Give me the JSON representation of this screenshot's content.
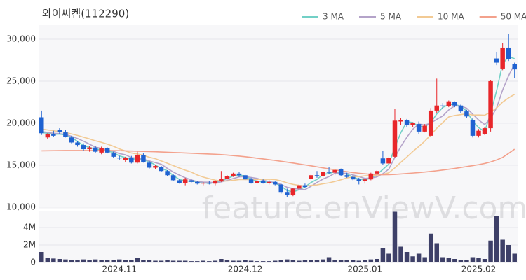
{
  "chart_data": {
    "type": "candlestick",
    "title": "와이씨켐(112290)",
    "watermark": "feature.enViewV.com",
    "categories": [
      null,
      null,
      null,
      null,
      null,
      null,
      null,
      null,
      null,
      null,
      null,
      null,
      null,
      "2024.11",
      null,
      null,
      null,
      null,
      null,
      null,
      null,
      null,
      null,
      null,
      null,
      null,
      null,
      null,
      null,
      null,
      null,
      null,
      null,
      null,
      "2024.12",
      null,
      null,
      null,
      null,
      null,
      null,
      null,
      null,
      null,
      null,
      null,
      null,
      null,
      null,
      null,
      null,
      null,
      null,
      null,
      "2025.01",
      null,
      null,
      null,
      null,
      null,
      null,
      null,
      null,
      null,
      null,
      null,
      null,
      null,
      null,
      null,
      null,
      null,
      null,
      "2025.02",
      null,
      null,
      null,
      null,
      null,
      null
    ],
    "open": [
      20700,
      18300,
      18700,
      19200,
      18900,
      18300,
      17700,
      17400,
      16900,
      17100,
      16500,
      17000,
      16400,
      15900,
      15600,
      15900,
      15300,
      16200,
      15300,
      14700,
      14800,
      14300,
      13800,
      13200,
      12900,
      13200,
      13000,
      12800,
      12900,
      12800,
      13100,
      13400,
      13700,
      14000,
      13800,
      13300,
      12900,
      13100,
      12900,
      13000,
      12700,
      11800,
      11400,
      12200,
      12600,
      13400,
      13800,
      13700,
      14200,
      14100,
      14500,
      13800,
      13600,
      13300,
      13100,
      13300,
      14000,
      15800,
      15200,
      16000,
      20200,
      20400,
      19800,
      19900,
      19000,
      18500,
      21500,
      22100,
      22000,
      22500,
      22100,
      21400,
      20400,
      18500,
      18700,
      19400,
      27700,
      26500,
      29000,
      27000
    ],
    "high": [
      21500,
      18800,
      19100,
      19400,
      19200,
      18500,
      17900,
      17600,
      17300,
      17300,
      17200,
      17100,
      16600,
      16100,
      16000,
      16100,
      16600,
      16400,
      15500,
      15000,
      14900,
      14400,
      13900,
      13300,
      13500,
      13400,
      13100,
      13000,
      13100,
      13200,
      14300,
      13800,
      14100,
      14200,
      13900,
      13500,
      13300,
      13300,
      13200,
      13100,
      12800,
      12200,
      12300,
      12700,
      12800,
      14000,
      14300,
      14400,
      14800,
      14500,
      14600,
      14100,
      13800,
      13500,
      13400,
      14100,
      14400,
      16700,
      16000,
      21700,
      20600,
      20500,
      20100,
      20200,
      19900,
      21800,
      25300,
      22400,
      22700,
      22600,
      22200,
      21600,
      20600,
      19300,
      19500,
      25100,
      28500,
      29500,
      30600,
      27200
    ],
    "low": [
      18600,
      18100,
      18400,
      18700,
      18300,
      17600,
      17200,
      16700,
      16600,
      16500,
      16300,
      16400,
      15900,
      15600,
      15400,
      15200,
      15200,
      15300,
      14600,
      14500,
      14200,
      13700,
      13100,
      12800,
      12600,
      12900,
      12700,
      12600,
      12700,
      12600,
      13000,
      13300,
      13600,
      13600,
      13200,
      12800,
      12800,
      12800,
      12700,
      12600,
      11600,
      11200,
      11300,
      12000,
      12300,
      13200,
      13500,
      13400,
      13900,
      13800,
      13700,
      13500,
      13200,
      12700,
      12800,
      13200,
      13900,
      15000,
      14900,
      15900,
      19800,
      19500,
      19500,
      18700,
      18900,
      18400,
      21200,
      21700,
      21900,
      21900,
      21200,
      20600,
      18300,
      18300,
      18600,
      19000,
      26900,
      26300,
      27400,
      25400
    ],
    "close": [
      18800,
      18700,
      18500,
      18900,
      18400,
      17700,
      17400,
      16900,
      17100,
      16600,
      17000,
      16500,
      16000,
      15800,
      15900,
      15300,
      16200,
      15400,
      14700,
      14900,
      14300,
      13800,
      13200,
      12900,
      13300,
      13000,
      12800,
      12900,
      12800,
      13100,
      13400,
      13700,
      14000,
      13800,
      13300,
      12900,
      13100,
      12900,
      13000,
      12700,
      11800,
      11400,
      12200,
      12600,
      12400,
      13800,
      13700,
      14200,
      14100,
      14400,
      13800,
      13600,
      13300,
      13100,
      13300,
      14000,
      14300,
      15200,
      15900,
      20300,
      20400,
      19800,
      20000,
      19000,
      19700,
      21500,
      22100,
      22000,
      22600,
      22100,
      21400,
      20800,
      18500,
      19100,
      19400,
      25000,
      27200,
      29000,
      27600,
      26400
    ],
    "up_color": "#e8262a",
    "down_color": "#1f62d1",
    "ylim": [
      9650,
      31750
    ],
    "yticks": [
      {
        "value": 10000,
        "label": "10,000"
      },
      {
        "value": 15000,
        "label": "15,000"
      },
      {
        "value": 20000,
        "label": "20,000"
      },
      {
        "value": 25000,
        "label": "25,000"
      },
      {
        "value": 30000,
        "label": "30,000"
      }
    ],
    "grid": true,
    "legend": "top-right",
    "series": [
      {
        "name": "3 MA",
        "color": "#72d0c6",
        "values": [
          18900,
          18800,
          18670,
          18700,
          18600,
          18330,
          17830,
          17330,
          17130,
          16870,
          16900,
          16700,
          16500,
          16100,
          15900,
          15670,
          15800,
          15630,
          15430,
          15000,
          14630,
          14330,
          13770,
          13300,
          13130,
          13070,
          13030,
          12900,
          12830,
          12930,
          13100,
          13400,
          13700,
          13830,
          13700,
          13330,
          13100,
          12970,
          13000,
          12870,
          12500,
          11970,
          11800,
          12070,
          12400,
          12930,
          13300,
          13900,
          14000,
          14230,
          14100,
          13930,
          13570,
          13330,
          13230,
          13470,
          13870,
          14500,
          15130,
          17130,
          18870,
          20170,
          20070,
          19600,
          19570,
          20070,
          21100,
          21870,
          22230,
          22230,
          22030,
          21430,
          20230,
          19470,
          19000,
          21170,
          23870,
          27070,
          27930,
          27670
        ]
      },
      {
        "name": "5 MA",
        "color": "#b4a3c9",
        "values": [
          19000,
          18900,
          18800,
          18750,
          18660,
          18440,
          18180,
          17860,
          17500,
          17140,
          17000,
          16820,
          16640,
          16380,
          16240,
          15900,
          15840,
          15720,
          15500,
          15300,
          15100,
          14620,
          14180,
          13820,
          13500,
          13240,
          13040,
          12980,
          12960,
          12920,
          13000,
          13180,
          13400,
          13600,
          13640,
          13540,
          13420,
          13200,
          13040,
          12920,
          12700,
          12360,
          12220,
          12140,
          12080,
          12480,
          12940,
          13340,
          13640,
          14040,
          14040,
          14020,
          13840,
          13640,
          13420,
          13460,
          13600,
          13980,
          14540,
          15940,
          17220,
          18320,
          19280,
          19900,
          19780,
          20000,
          20460,
          20860,
          21580,
          22060,
          22040,
          21780,
          21080,
          20380,
          19840,
          20560,
          21840,
          23940,
          25640,
          27040
        ]
      },
      {
        "name": "10 MA",
        "color": "#f2ca94",
        "values": [
          19300,
          19200,
          19100,
          19000,
          18900,
          18720,
          18540,
          18330,
          18130,
          17900,
          17720,
          17500,
          17250,
          16940,
          16690,
          16450,
          16330,
          16180,
          15940,
          15770,
          15500,
          15230,
          14950,
          14660,
          14400,
          14170,
          13830,
          13580,
          13390,
          13210,
          13120,
          13110,
          13190,
          13280,
          13280,
          13270,
          13300,
          13300,
          13320,
          13280,
          13120,
          12890,
          12710,
          12590,
          12500,
          12590,
          12650,
          12780,
          12890,
          13060,
          13260,
          13480,
          13590,
          13640,
          13730,
          13750,
          13810,
          13910,
          14090,
          14680,
          15340,
          15960,
          16630,
          17220,
          17860,
          18610,
          19390,
          20070,
          20740,
          20920,
          21020,
          21120,
          20970,
          20980,
          20950,
          21300,
          21810,
          22510,
          23010,
          23440
        ]
      },
      {
        "name": "50 MA",
        "color": "#f3a18c",
        "values": [
          16700,
          16710,
          16720,
          16730,
          16740,
          16740,
          16750,
          16750,
          16750,
          16750,
          16750,
          16740,
          16730,
          16720,
          16700,
          16680,
          16660,
          16640,
          16620,
          16600,
          16570,
          16540,
          16510,
          16480,
          16450,
          16420,
          16390,
          16360,
          16330,
          16300,
          16250,
          16200,
          16140,
          16080,
          16000,
          15920,
          15830,
          15740,
          15650,
          15560,
          15460,
          15360,
          15250,
          15140,
          15030,
          14920,
          14800,
          14680,
          14560,
          14440,
          14320,
          14220,
          14120,
          14040,
          13970,
          13910,
          13880,
          13860,
          13870,
          13900,
          13950,
          14000,
          14060,
          14120,
          14180,
          14250,
          14330,
          14420,
          14510,
          14610,
          14720,
          14830,
          14940,
          15060,
          15200,
          15380,
          15620,
          15920,
          16400,
          16900
        ]
      }
    ],
    "volume": {
      "color": "#3e4068",
      "ylim": [
        0,
        6000000
      ],
      "yticks": [
        0,
        {
          "value": 2000000,
          "label": "2M"
        },
        {
          "value": 4000000,
          "label": "4M"
        }
      ],
      "values": [
        1200000,
        500000,
        450000,
        400000,
        350000,
        300000,
        300000,
        350000,
        300000,
        350000,
        250000,
        300000,
        250000,
        350000,
        300000,
        250000,
        500000,
        300000,
        250000,
        200000,
        200000,
        250000,
        200000,
        200000,
        200000,
        150000,
        150000,
        200000,
        150000,
        200000,
        400000,
        250000,
        200000,
        200000,
        250000,
        200000,
        150000,
        150000,
        150000,
        200000,
        300000,
        350000,
        250000,
        200000,
        250000,
        300000,
        250000,
        350000,
        600000,
        300000,
        250000,
        300000,
        250000,
        200000,
        300000,
        350000,
        400000,
        1600000,
        1000000,
        5800000,
        1800000,
        1200000,
        700000,
        1000000,
        600000,
        3300000,
        2200000,
        600000,
        500000,
        400000,
        300000,
        300000,
        600000,
        500000,
        400000,
        2500000,
        5300000,
        2600000,
        2000000,
        1000000
      ]
    }
  }
}
